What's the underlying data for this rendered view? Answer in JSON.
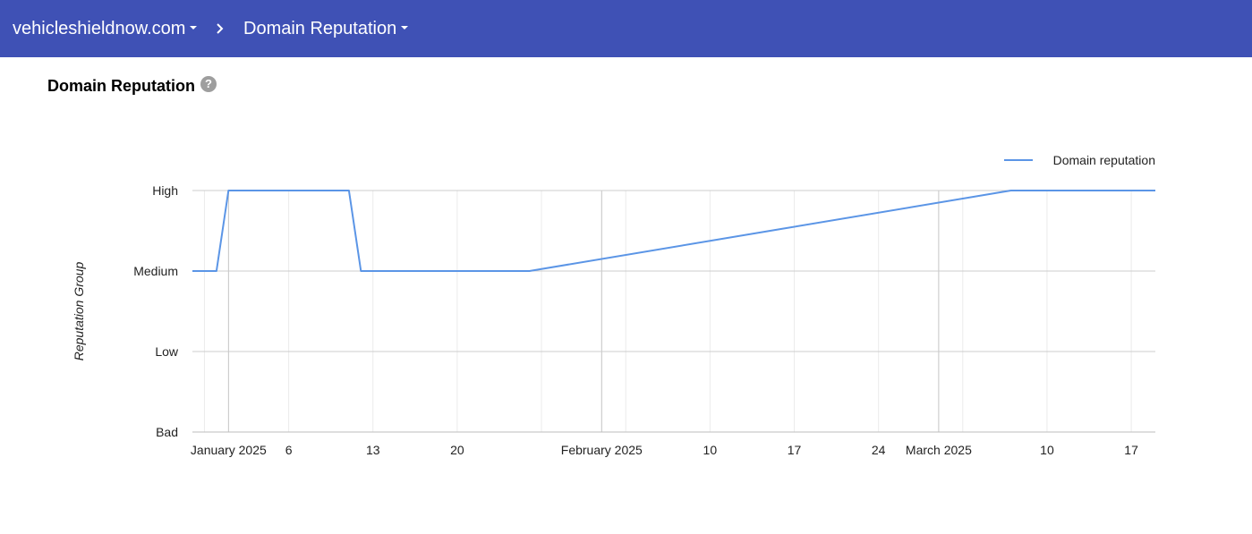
{
  "header": {
    "domain": "vehicleshieldnow.com",
    "section": "Domain Reputation"
  },
  "page": {
    "title": "Domain Reputation",
    "help_symbol": "?"
  },
  "colors": {
    "header_bg": "#3f51b5",
    "series_line": "#5b95e6"
  },
  "chart_data": {
    "type": "line",
    "title": "",
    "xlabel": "",
    "ylabel": "Reputation Group",
    "y_categories": [
      "Bad",
      "Low",
      "Medium",
      "High"
    ],
    "x_range": [
      "2024-12-29",
      "2025-03-19"
    ],
    "x_ticks": [
      {
        "date": "2025-01-01",
        "label": "January 2025",
        "major": true
      },
      {
        "date": "2025-01-06",
        "label": "6",
        "major": false
      },
      {
        "date": "2025-01-13",
        "label": "13",
        "major": false
      },
      {
        "date": "2025-01-20",
        "label": "20",
        "major": false
      },
      {
        "date": "2025-02-01",
        "label": "February 2025",
        "major": true
      },
      {
        "date": "2025-02-10",
        "label": "10",
        "major": false
      },
      {
        "date": "2025-02-17",
        "label": "17",
        "major": false
      },
      {
        "date": "2025-02-24",
        "label": "24",
        "major": false
      },
      {
        "date": "2025-03-01",
        "label": "March 2025",
        "major": true
      },
      {
        "date": "2025-03-10",
        "label": "10",
        "major": false
      },
      {
        "date": "2025-03-17",
        "label": "17",
        "major": false
      }
    ],
    "minor_grid_dates": [
      "2024-12-30",
      "2025-01-06",
      "2025-01-13",
      "2025-01-20",
      "2025-01-27",
      "2025-02-03",
      "2025-02-10",
      "2025-02-17",
      "2025-02-24",
      "2025-03-03",
      "2025-03-10",
      "2025-03-17"
    ],
    "legend": "top-right",
    "grid": true,
    "series": [
      {
        "name": "Domain reputation",
        "points": [
          {
            "x": "2024-12-29",
            "y": "Medium"
          },
          {
            "x": "2024-12-31",
            "y": "Medium"
          },
          {
            "x": "2025-01-01",
            "y": "High"
          },
          {
            "x": "2025-01-11",
            "y": "High"
          },
          {
            "x": "2025-01-12",
            "y": "Medium"
          },
          {
            "x": "2025-01-26",
            "y": "Medium"
          },
          {
            "x": "2025-03-07",
            "y": "High"
          },
          {
            "x": "2025-03-19",
            "y": "High"
          }
        ]
      }
    ]
  }
}
